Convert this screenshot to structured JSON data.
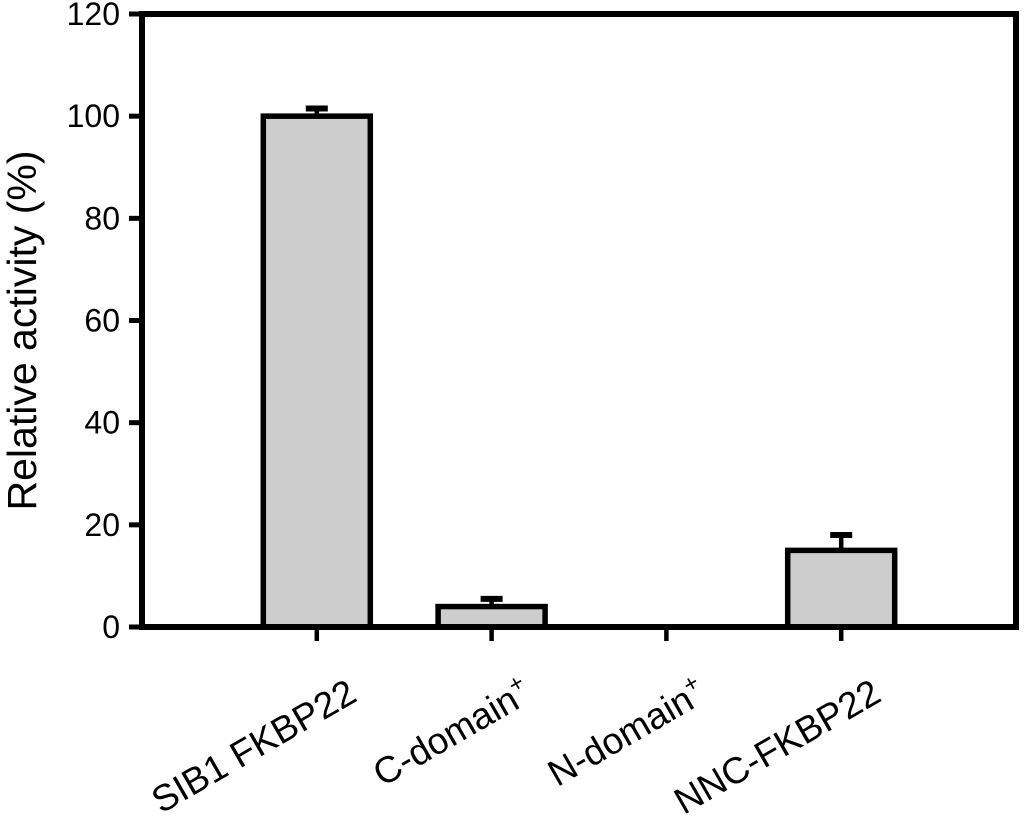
{
  "chart_data": {
    "type": "bar",
    "title": "",
    "ylabel": "Relative activity (%)",
    "xlabel": "",
    "ylim": [
      0,
      120
    ],
    "yticks": [
      0,
      20,
      40,
      60,
      80,
      100,
      120
    ],
    "grid": false,
    "legend_position": "none",
    "frame": true,
    "bar_color": "#cdcdcd",
    "bar_edge_color": "#000000",
    "axis_color": "#000000",
    "background_color": "#ffffff",
    "x_label_rotation_deg": -30,
    "categories": [
      {
        "label": "SIB1 FKBP22",
        "sup": ""
      },
      {
        "label": "C-domain",
        "sup": "+"
      },
      {
        "label": "N-domain",
        "sup": "+"
      },
      {
        "label": "NNC-FKBP22",
        "sup": ""
      }
    ],
    "series": [
      {
        "name": "Relative activity (%)",
        "values": [
          100,
          4,
          0,
          15
        ],
        "errors_plus": [
          1.5,
          1.5,
          0,
          3
        ]
      }
    ]
  }
}
